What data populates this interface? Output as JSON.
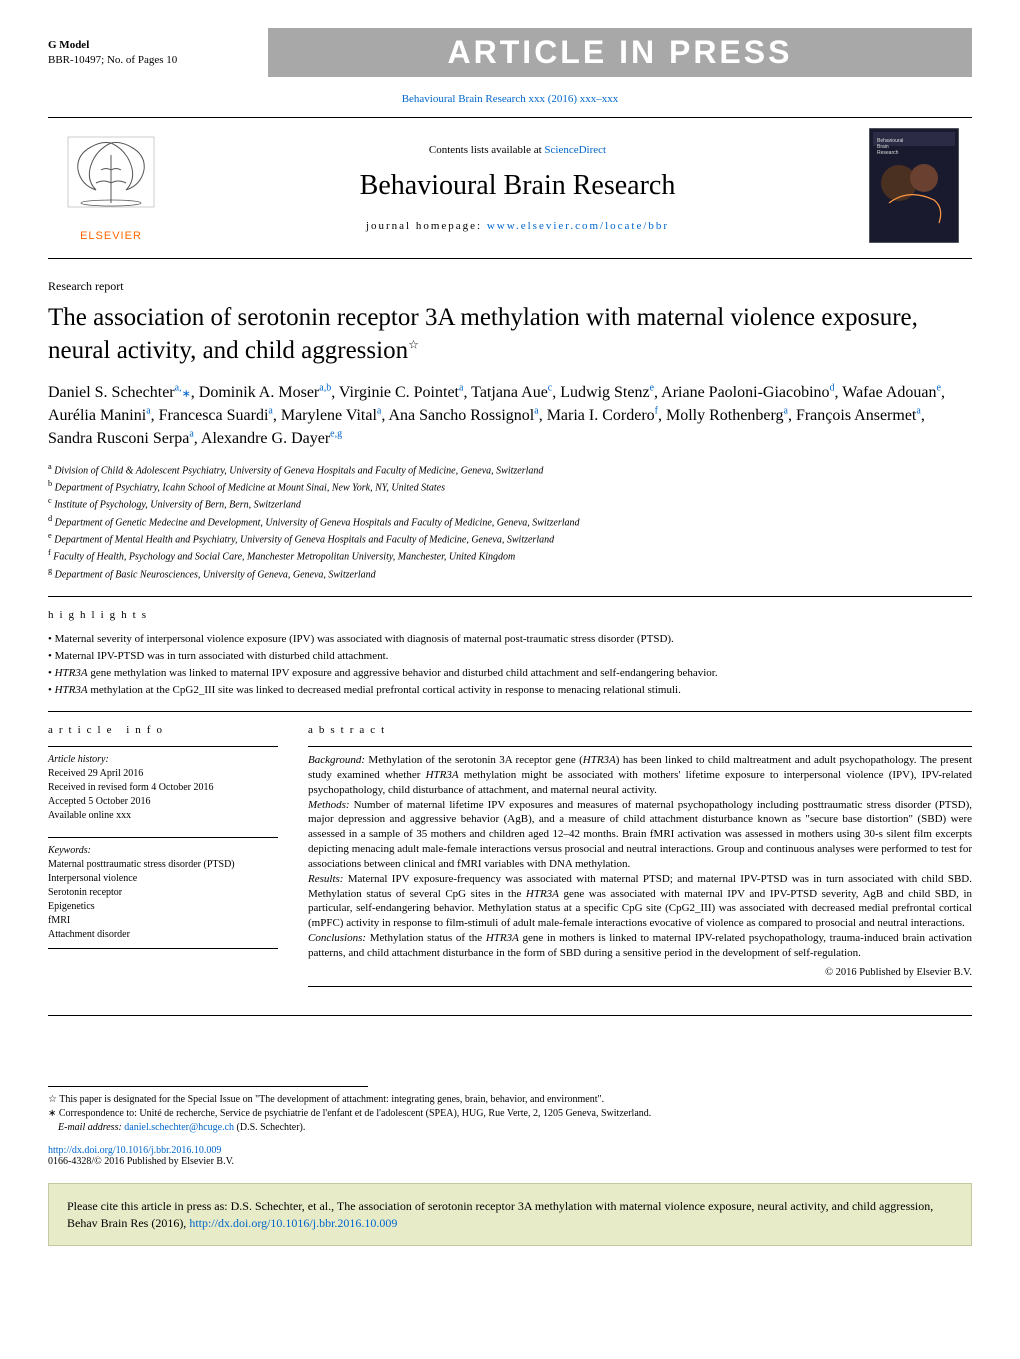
{
  "gmodel": {
    "label": "G Model",
    "ref": "BBR-10497;   No. of Pages 10"
  },
  "aip_banner": "ARTICLE IN PRESS",
  "journal_ref": "Behavioural Brain Research xxx (2016) xxx–xxx",
  "header": {
    "contents_prefix": "Contents lists available at ",
    "contents_link": "ScienceDirect",
    "journal_name": "Behavioural Brain Research",
    "homepage_prefix": "journal homepage: ",
    "homepage_link": "www.elsevier.com/locate/bbr",
    "elsevier": "ELSEVIER"
  },
  "section_label": "Research report",
  "title": "The association of serotonin receptor 3A methylation with maternal violence exposure, neural activity, and child aggression",
  "title_star": "☆",
  "authors_html": "Daniel S. Schechter<sup>a,</sup><span class='corr'>∗</span>, Dominik A. Moser<sup>a,b</sup>, Virginie C. Pointet<sup>a</sup>, Tatjana Aue<sup>c</sup>, Ludwig Stenz<sup>e</sup>, Ariane Paoloni-Giacobino<sup>d</sup>, Wafae Adouan<sup>e</sup>, Aurélia Manini<sup>a</sup>, Francesca Suardi<sup>a</sup>, Marylene Vital<sup>a</sup>, Ana Sancho Rossignol<sup>a</sup>, Maria I. Cordero<sup>f</sup>, Molly Rothenberg<sup>a</sup>, François Ansermet<sup>a</sup>, Sandra Rusconi Serpa<sup>a</sup>, Alexandre G. Dayer<sup>e,g</sup>",
  "affiliations": [
    {
      "sup": "a",
      "text": "Division of Child & Adolescent Psychiatry, University of Geneva Hospitals and Faculty of Medicine, Geneva, Switzerland"
    },
    {
      "sup": "b",
      "text": "Department of Psychiatry, Icahn School of Medicine at Mount Sinai, New York, NY, United States"
    },
    {
      "sup": "c",
      "text": "Institute of Psychology, University of Bern, Bern, Switzerland"
    },
    {
      "sup": "d",
      "text": "Department of Genetic Medecine and Development, University of Geneva Hospitals and Faculty of Medicine, Geneva, Switzerland"
    },
    {
      "sup": "e",
      "text": "Department of Mental Health and Psychiatry, University of Geneva Hospitals and Faculty of Medicine, Geneva, Switzerland"
    },
    {
      "sup": "f",
      "text": "Faculty of Health, Psychology and Social Care, Manchester Metropolitan University, Manchester, United Kingdom"
    },
    {
      "sup": "g",
      "text": "Department of Basic Neurosciences, University of Geneva, Geneva, Switzerland"
    }
  ],
  "highlights": {
    "title": "highlights",
    "items": [
      "Maternal severity of interpersonal violence exposure (IPV) was associated with diagnosis of maternal post-traumatic stress disorder (PTSD).",
      "Maternal IPV-PTSD was in turn associated with disturbed child attachment.",
      "<span class='gene'>HTR3A</span> gene methylation was linked to maternal IPV exposure and aggressive behavior and disturbed child attachment and self-endangering behavior.",
      "<span class='gene'>HTR3A</span> methylation at the CpG2_III site was linked to decreased medial prefrontal cortical activity in response to menacing relational stimuli."
    ]
  },
  "article_info": {
    "heading": "article info",
    "history_title": "Article history:",
    "history": [
      "Received 29 April 2016",
      "Received in revised form 4 October 2016",
      "Accepted 5 October 2016",
      "Available online xxx"
    ],
    "keywords_title": "Keywords:",
    "keywords": [
      "Maternal posttraumatic stress disorder (PTSD)",
      "Interpersonal violence",
      "Serotonin receptor",
      "Epigenetics",
      "fMRI",
      "Attachment disorder"
    ]
  },
  "abstract": {
    "heading": "abstract",
    "paragraphs": [
      "<em>Background:</em> Methylation of the serotonin 3A receptor gene (<span class='gene'>HTR3A</span>) has been linked to child maltreatment and adult psychopathology. The present study examined whether <span class='gene'>HTR3A</span> methylation might be associated with mothers' lifetime exposure to interpersonal violence (IPV), IPV-related psychopathology, child disturbance of attachment, and maternal neural activity.",
      "<em>Methods:</em> Number of maternal lifetime IPV exposures and measures of maternal psychopathology including posttraumatic stress disorder (PTSD), major depression and aggressive behavior (AgB), and a measure of child attachment disturbance known as \"secure base distortion\" (SBD) were assessed in a sample of 35 mothers and children aged 12–42 months. Brain fMRI activation was assessed in mothers using 30-s silent film excerpts depicting menacing adult male-female interactions versus prosocial and neutral interactions. Group and continuous analyses were performed to test for associations between clinical and fMRI variables with DNA methylation.",
      "<em>Results:</em> Maternal IPV exposure-frequency was associated with maternal PTSD; and maternal IPV-PTSD was in turn associated with child SBD. Methylation status of several CpG sites in the <span class='gene'>HTR3A</span> gene was associated with maternal IPV and IPV-PTSD severity, AgB and child SBD, in particular, self-endangering behavior. Methylation status at a specific CpG site (CpG2_III) was associated with decreased medial prefrontal cortical (mPFC) activity in response to film-stimuli of adult male-female interactions evocative of violence as compared to prosocial and neutral interactions.",
      "<em>Conclusions:</em> Methylation status of the <span class='gene'>HTR3A</span> gene in mothers is linked to maternal IPV-related psychopathology, trauma-induced brain activation patterns, and child attachment disturbance in the form of SBD during a sensitive period in the development of self-regulation."
    ],
    "copyright": "© 2016 Published by Elsevier B.V."
  },
  "footnotes": {
    "star": "☆  This paper is designated for the Special Issue on \"The development of attachment: integrating genes, brain, behavior, and environment\".",
    "corr": "∗  Correspondence to: Unité de recherche, Service de psychiatrie de l'enfant et de l'adolescent (SPEA), HUG, Rue Verte, 2, 1205 Geneva, Switzerland.",
    "email_label": "E-mail address: ",
    "email": "daniel.schechter@hcuge.ch",
    "email_suffix": " (D.S. Schechter)."
  },
  "doi": {
    "link": "http://dx.doi.org/10.1016/j.bbr.2016.10.009",
    "issn": "0166-4328/© 2016 Published by Elsevier B.V."
  },
  "cite_box": {
    "prefix": "Please cite this article in press as: D.S. Schechter, et al., The association of serotonin receptor 3A methylation with maternal violence exposure, neural activity, and child aggression, Behav Brain Res (2016), ",
    "link": "http://dx.doi.org/10.1016/j.bbr.2016.10.009"
  }
}
